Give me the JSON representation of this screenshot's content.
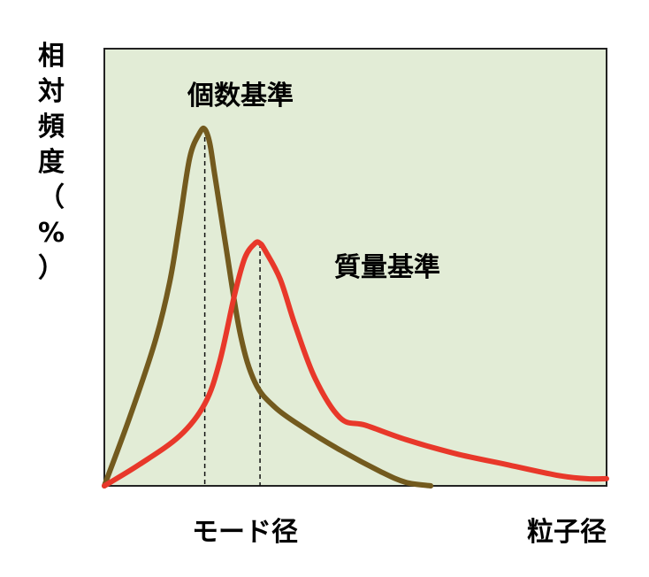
{
  "chart_data": {
    "type": "line",
    "ylabel": "相対頻度（%）",
    "ylabel_chars": [
      "相",
      "対",
      "頻",
      "度",
      "（",
      "%",
      "）"
    ],
    "x_annotations": [
      "モード径",
      "粒子径"
    ],
    "grid": false,
    "colors": {
      "background": "#e2ecd6",
      "count": "#735a1e",
      "mass": "#e8382a"
    },
    "series": [
      {
        "name": "個数基準",
        "color": "#735a1e",
        "x": [
          0.0,
          0.05,
          0.1,
          0.13,
          0.15,
          0.17,
          0.19,
          0.2,
          0.21,
          0.22,
          0.24,
          0.27,
          0.3,
          0.34,
          0.4,
          0.47,
          0.55,
          0.6,
          0.65
        ],
        "y": [
          0.0,
          0.19,
          0.4,
          0.57,
          0.74,
          0.92,
          0.99,
          1.0,
          0.96,
          0.87,
          0.69,
          0.43,
          0.29,
          0.22,
          0.16,
          0.1,
          0.04,
          0.01,
          0.0
        ]
      },
      {
        "name": "質量基準",
        "color": "#e8382a",
        "x": [
          0.0,
          0.07,
          0.15,
          0.2,
          0.23,
          0.26,
          0.28,
          0.3,
          0.31,
          0.32,
          0.35,
          0.38,
          0.42,
          0.47,
          0.52,
          0.6,
          0.7,
          0.8,
          0.9,
          0.96,
          1.0
        ],
        "y": [
          0.0,
          0.06,
          0.14,
          0.23,
          0.35,
          0.54,
          0.64,
          0.68,
          0.68,
          0.66,
          0.58,
          0.45,
          0.3,
          0.19,
          0.17,
          0.13,
          0.09,
          0.06,
          0.03,
          0.02,
          0.02
        ]
      }
    ],
    "mode_lines": [
      {
        "series": "個数基準",
        "x": 0.2
      },
      {
        "series": "質量基準",
        "x": 0.31
      }
    ]
  }
}
